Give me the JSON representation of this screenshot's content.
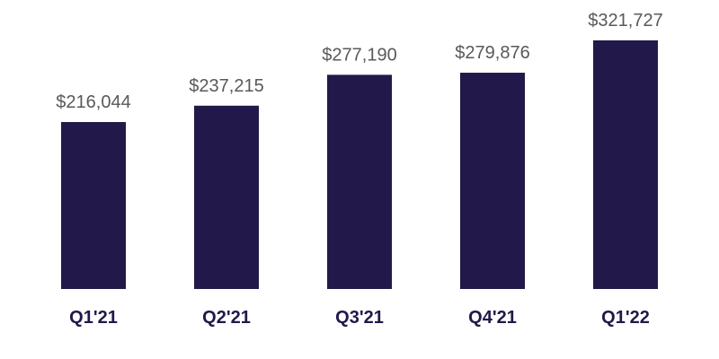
{
  "chart_data": {
    "type": "bar",
    "categories": [
      "Q1'21",
      "Q2'21",
      "Q3'21",
      "Q4'21",
      "Q1'22"
    ],
    "values": [
      216044,
      237215,
      277190,
      279876,
      321727
    ],
    "data_labels": [
      "$216,044",
      "$237,215",
      "$277,190",
      "$279,876",
      "$321,727"
    ],
    "title": "",
    "xlabel": "",
    "ylabel": "",
    "ylim": [
      0,
      350000
    ],
    "grid": false,
    "legend": "none",
    "bar_color": "#22184a",
    "label_color": "#595959",
    "category_color": "#22184a"
  }
}
